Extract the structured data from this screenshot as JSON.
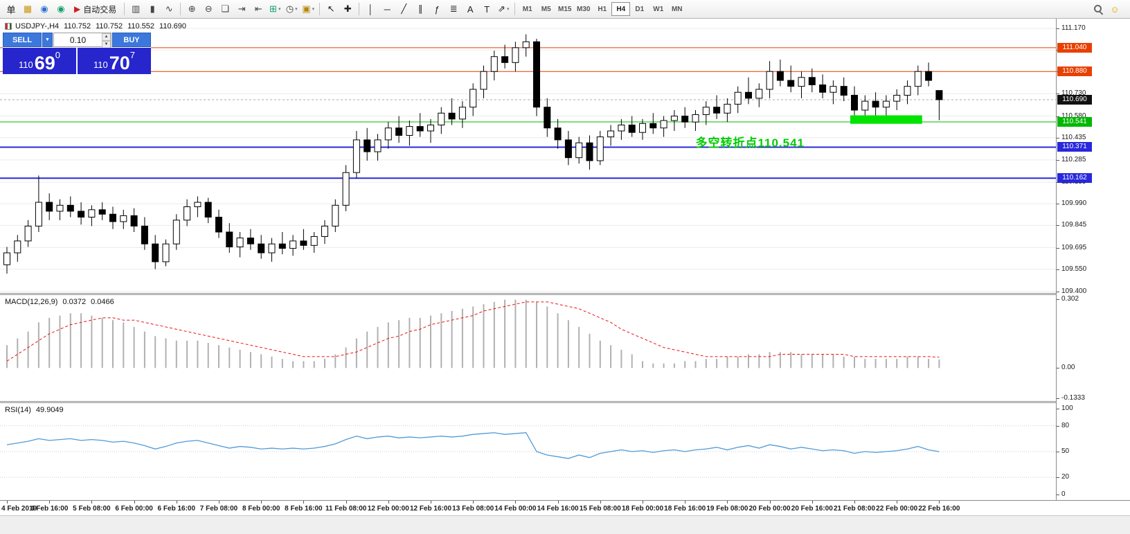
{
  "toolbar": {
    "caret_glyph": "▾",
    "items": [
      {
        "k": "icon",
        "name": "new-order-icon",
        "glyph": "单",
        "color": "#1a1a1a"
      },
      {
        "k": "icon",
        "name": "new-chart-icon",
        "glyph": "▦",
        "color": "#c8960c"
      },
      {
        "k": "icon",
        "name": "accounts-icon",
        "glyph": "◉",
        "color": "#2a6fd4"
      },
      {
        "k": "icon",
        "name": "community-icon",
        "glyph": "◉",
        "color": "#12a06a"
      },
      {
        "k": "btn",
        "name": "auto-trading-button",
        "glyph": "▶",
        "color": "#d02020",
        "label": "自动交易"
      },
      {
        "k": "sep"
      },
      {
        "k": "icon",
        "name": "bar-chart-icon",
        "glyph": "▥",
        "color": "#444444"
      },
      {
        "k": "icon",
        "name": "candlestick-chart-icon",
        "glyph": "▮",
        "color": "#444444"
      },
      {
        "k": "icon",
        "name": "line-chart-icon",
        "glyph": "∿",
        "color": "#444444"
      },
      {
        "k": "sep"
      },
      {
        "k": "icon",
        "name": "zoom-in-icon",
        "glyph": "⊕",
        "color": "#444444"
      },
      {
        "k": "icon",
        "name": "zoom-out-icon",
        "glyph": "⊖",
        "color": "#444444"
      },
      {
        "k": "icon",
        "name": "tile-windows-icon",
        "glyph": "❏",
        "color": "#444444"
      },
      {
        "k": "icon",
        "name": "auto-scroll-icon",
        "glyph": "⇥",
        "color": "#444444"
      },
      {
        "k": "icon",
        "name": "chart-shift-icon",
        "glyph": "⇤",
        "color": "#444444"
      },
      {
        "k": "icondrop",
        "name": "indicators-icon",
        "glyph": "⊞",
        "color": "#12a06a"
      },
      {
        "k": "icondrop",
        "name": "periods-icon",
        "glyph": "◷",
        "color": "#444444"
      },
      {
        "k": "icondrop",
        "name": "templates-icon",
        "glyph": "▣",
        "color": "#b8860b"
      },
      {
        "k": "sep"
      },
      {
        "k": "icon",
        "name": "cursor-icon",
        "glyph": "↖",
        "color": "#222222"
      },
      {
        "k": "icon",
        "name": "crosshair-icon",
        "glyph": "✚",
        "color": "#222222"
      },
      {
        "k": "sep"
      },
      {
        "k": "icon",
        "name": "vertical-line-icon",
        "glyph": "│",
        "color": "#222222"
      },
      {
        "k": "icon",
        "name": "horizontal-line-icon",
        "glyph": "─",
        "color": "#222222"
      },
      {
        "k": "icon",
        "name": "trendline-icon",
        "glyph": "╱",
        "color": "#222222"
      },
      {
        "k": "icon",
        "name": "channel-icon",
        "glyph": "∥",
        "color": "#222222"
      },
      {
        "k": "icon",
        "name": "fibonacci-icon",
        "glyph": "ƒ",
        "color": "#222222"
      },
      {
        "k": "icon",
        "name": "shapes-icon",
        "glyph": "≣",
        "color": "#222222"
      },
      {
        "k": "icon",
        "name": "text-icon",
        "glyph": "A",
        "color": "#222222"
      },
      {
        "k": "icon",
        "name": "text-label-icon",
        "glyph": "T",
        "color": "#222222"
      },
      {
        "k": "icondrop",
        "name": "arrows-icon",
        "glyph": "⇗",
        "color": "#222222"
      },
      {
        "k": "sep"
      }
    ],
    "timeframes": [
      {
        "label": "M1"
      },
      {
        "label": "M5"
      },
      {
        "label": "M15"
      },
      {
        "label": "M30"
      },
      {
        "label": "H1"
      },
      {
        "label": "H4",
        "active": true
      },
      {
        "label": "D1"
      },
      {
        "label": "W1"
      },
      {
        "label": "MN"
      }
    ],
    "right_icons": [
      {
        "name": "search-icon",
        "css": "magnifier"
      },
      {
        "name": "smiley-icon",
        "glyph": "☺",
        "color": "#e0a500"
      }
    ]
  },
  "chart_header": {
    "symbol": "USDJPY-,H4",
    "open": "110.752",
    "high": "110.752",
    "low": "110.552",
    "close": "110.690"
  },
  "one_click": {
    "sell_label": "SELL",
    "buy_label": "BUY",
    "volume": "0.10",
    "dropdown_caret": "▼",
    "spin_up": "▲",
    "spin_down": "▼",
    "sell": {
      "prefix": "110",
      "big": "69",
      "sup": "0"
    },
    "buy": {
      "prefix": "110",
      "big": "70",
      "sup": "7"
    }
  },
  "chart_data": {
    "type": "candlestick",
    "symbol": "USDJPY-",
    "timeframe": "H4",
    "ylim": [
      109.39,
      111.235
    ],
    "bars_per_label": 4,
    "x_labels": [
      "4 Feb 2019",
      "4 Feb 16:00",
      "5 Feb 08:00",
      "6 Feb 00:00",
      "6 Feb 16:00",
      "7 Feb 08:00",
      "8 Feb 00:00",
      "8 Feb 16:00",
      "11 Feb 08:00",
      "12 Feb 00:00",
      "12 Feb 16:00",
      "13 Feb 08:00",
      "14 Feb 00:00",
      "14 Feb 16:00",
      "15 Feb 08:00",
      "18 Feb 00:00",
      "18 Feb 16:00",
      "19 Feb 08:00",
      "20 Feb 00:00",
      "20 Feb 16:00",
      "21 Feb 08:00",
      "22 Feb 00:00",
      "22 Feb 16:00"
    ],
    "price_axis_ticks": [
      "111.170",
      "111.025",
      "110.880",
      "110.730",
      "110.580",
      "110.435",
      "110.285",
      "110.135",
      "109.990",
      "109.845",
      "109.695",
      "109.550",
      "109.400"
    ],
    "ohlc": [
      [
        109.58,
        109.7,
        109.52,
        109.66
      ],
      [
        109.66,
        109.78,
        109.6,
        109.74
      ],
      [
        109.74,
        109.88,
        109.7,
        109.84
      ],
      [
        109.84,
        110.18,
        109.8,
        110.0
      ],
      [
        110.0,
        110.06,
        109.88,
        109.94
      ],
      [
        109.94,
        110.02,
        109.88,
        109.98
      ],
      [
        109.98,
        110.04,
        109.9,
        109.94
      ],
      [
        109.94,
        110.0,
        109.85,
        109.9
      ],
      [
        109.9,
        109.98,
        109.84,
        109.95
      ],
      [
        109.95,
        110.0,
        109.88,
        109.92
      ],
      [
        109.92,
        109.97,
        109.82,
        109.87
      ],
      [
        109.87,
        109.95,
        109.82,
        109.91
      ],
      [
        109.91,
        109.96,
        109.8,
        109.84
      ],
      [
        109.84,
        109.9,
        109.68,
        109.72
      ],
      [
        109.72,
        109.78,
        109.55,
        109.6
      ],
      [
        109.6,
        109.75,
        109.57,
        109.72
      ],
      [
        109.72,
        109.92,
        109.68,
        109.88
      ],
      [
        109.88,
        110.02,
        109.84,
        109.97
      ],
      [
        109.97,
        110.04,
        109.9,
        110.0
      ],
      [
        110.0,
        110.03,
        109.86,
        109.9
      ],
      [
        109.9,
        109.95,
        109.76,
        109.8
      ],
      [
        109.8,
        109.86,
        109.66,
        109.7
      ],
      [
        109.7,
        109.8,
        109.63,
        109.76
      ],
      [
        109.76,
        109.82,
        109.68,
        109.72
      ],
      [
        109.72,
        109.78,
        109.62,
        109.66
      ],
      [
        109.66,
        109.76,
        109.6,
        109.72
      ],
      [
        109.72,
        109.8,
        109.65,
        109.69
      ],
      [
        109.69,
        109.78,
        109.64,
        109.74
      ],
      [
        109.74,
        109.82,
        109.68,
        109.71
      ],
      [
        109.71,
        109.8,
        109.66,
        109.77
      ],
      [
        109.77,
        109.88,
        109.72,
        109.84
      ],
      [
        109.84,
        110.02,
        109.8,
        109.98
      ],
      [
        109.98,
        110.25,
        109.94,
        110.2
      ],
      [
        110.2,
        110.48,
        110.16,
        110.42
      ],
      [
        110.42,
        110.5,
        110.28,
        110.34
      ],
      [
        110.34,
        110.46,
        110.28,
        110.42
      ],
      [
        110.42,
        110.54,
        110.36,
        110.5
      ],
      [
        110.5,
        110.58,
        110.4,
        110.45
      ],
      [
        110.45,
        110.55,
        110.38,
        110.51
      ],
      [
        110.51,
        110.6,
        110.44,
        110.48
      ],
      [
        110.48,
        110.56,
        110.4,
        110.52
      ],
      [
        110.52,
        110.64,
        110.46,
        110.6
      ],
      [
        110.6,
        110.7,
        110.52,
        110.56
      ],
      [
        110.56,
        110.68,
        110.5,
        110.64
      ],
      [
        110.64,
        110.8,
        110.58,
        110.76
      ],
      [
        110.76,
        110.92,
        110.7,
        110.88
      ],
      [
        110.88,
        111.02,
        110.82,
        110.98
      ],
      [
        110.98,
        111.06,
        110.9,
        110.94
      ],
      [
        110.94,
        111.08,
        110.88,
        111.04
      ],
      [
        111.04,
        111.13,
        110.98,
        111.08
      ],
      [
        111.08,
        111.1,
        110.58,
        110.64
      ],
      [
        110.64,
        110.7,
        110.44,
        110.5
      ],
      [
        110.5,
        110.56,
        110.36,
        110.42
      ],
      [
        110.42,
        110.48,
        110.25,
        110.3
      ],
      [
        110.3,
        110.44,
        110.26,
        110.4
      ],
      [
        110.4,
        110.45,
        110.22,
        110.28
      ],
      [
        110.28,
        110.48,
        110.25,
        110.44
      ],
      [
        110.44,
        110.52,
        110.38,
        110.48
      ],
      [
        110.48,
        110.56,
        110.42,
        110.52
      ],
      [
        110.52,
        110.58,
        110.44,
        110.47
      ],
      [
        110.47,
        110.56,
        110.42,
        110.53
      ],
      [
        110.53,
        110.6,
        110.46,
        110.5
      ],
      [
        110.5,
        110.58,
        110.44,
        110.55
      ],
      [
        110.55,
        110.62,
        110.48,
        110.58
      ],
      [
        110.58,
        110.64,
        110.5,
        110.54
      ],
      [
        110.54,
        110.62,
        110.48,
        110.59
      ],
      [
        110.59,
        110.68,
        110.52,
        110.64
      ],
      [
        110.64,
        110.72,
        110.56,
        110.6
      ],
      [
        110.6,
        110.7,
        110.54,
        110.66
      ],
      [
        110.66,
        110.78,
        110.6,
        110.74
      ],
      [
        110.74,
        110.84,
        110.66,
        110.7
      ],
      [
        110.7,
        110.8,
        110.64,
        110.76
      ],
      [
        110.76,
        110.95,
        110.7,
        110.88
      ],
      [
        110.88,
        110.96,
        110.78,
        110.82
      ],
      [
        110.82,
        110.92,
        110.74,
        110.78
      ],
      [
        110.78,
        110.88,
        110.7,
        110.84
      ],
      [
        110.84,
        110.9,
        110.74,
        110.79
      ],
      [
        110.79,
        110.86,
        110.7,
        110.74
      ],
      [
        110.74,
        110.82,
        110.66,
        110.78
      ],
      [
        110.78,
        110.84,
        110.68,
        110.72
      ],
      [
        110.72,
        110.78,
        110.56,
        110.62
      ],
      [
        110.62,
        110.72,
        110.56,
        110.68
      ],
      [
        110.68,
        110.74,
        110.58,
        110.64
      ],
      [
        110.64,
        110.72,
        110.58,
        110.68
      ],
      [
        110.68,
        110.76,
        110.62,
        110.72
      ],
      [
        110.72,
        110.82,
        110.66,
        110.78
      ],
      [
        110.78,
        110.92,
        110.72,
        110.88
      ],
      [
        110.88,
        110.94,
        110.78,
        110.82
      ],
      [
        110.752,
        110.752,
        110.552,
        110.69
      ]
    ],
    "levels": [
      {
        "label": "111.040",
        "value": 111.04,
        "color": "#e84000",
        "width": 1,
        "style": "solid"
      },
      {
        "label": "110.880",
        "value": 110.88,
        "color": "#e84000",
        "width": 1,
        "style": "solid"
      },
      {
        "label": "110.690",
        "value": 110.69,
        "color": "#111111",
        "width": 1,
        "style": "current"
      },
      {
        "label": "110.541",
        "value": 110.541,
        "color": "#00b800",
        "width": 1,
        "style": "solid"
      },
      {
        "label": "110.371",
        "value": 110.371,
        "color": "#2828dc",
        "width": 2,
        "style": "solid"
      },
      {
        "label": "110.162",
        "value": 110.162,
        "color": "#2828dc",
        "width": 2,
        "style": "solid"
      }
    ],
    "highlight": {
      "from_bar": 80,
      "to_bar": 86,
      "price_top": 110.585,
      "price_bottom": 110.528,
      "color": "#00e400"
    },
    "annotation": {
      "text": "多空转折点110.541",
      "color": "#00cc00",
      "bar": 65,
      "price": 110.44
    },
    "indicators": {
      "macd": {
        "label": "MACD(12,26,9)",
        "value_main": "0.0372",
        "value_signal": "0.0466",
        "ylim": [
          -0.145,
          0.32
        ],
        "ticks": [
          {
            "label": "0.302",
            "value": 0.302
          },
          {
            "label": "0.00",
            "value": 0.0
          },
          {
            "label": "-0.1333",
            "value": -0.1333
          }
        ],
        "histogram_color": "#b0b0b0",
        "signal_color": "#ee1111",
        "histogram": [
          0.1,
          0.13,
          0.16,
          0.2,
          0.22,
          0.23,
          0.24,
          0.24,
          0.23,
          0.22,
          0.21,
          0.2,
          0.18,
          0.16,
          0.14,
          0.13,
          0.12,
          0.12,
          0.12,
          0.11,
          0.1,
          0.09,
          0.08,
          0.07,
          0.06,
          0.05,
          0.04,
          0.03,
          0.03,
          0.03,
          0.04,
          0.06,
          0.09,
          0.13,
          0.16,
          0.18,
          0.2,
          0.21,
          0.22,
          0.22,
          0.23,
          0.24,
          0.25,
          0.26,
          0.27,
          0.28,
          0.29,
          0.3,
          0.3,
          0.3,
          0.29,
          0.27,
          0.24,
          0.21,
          0.18,
          0.15,
          0.12,
          0.1,
          0.08,
          0.06,
          0.03,
          0.02,
          0.02,
          0.02,
          0.03,
          0.03,
          0.04,
          0.04,
          0.05,
          0.05,
          0.06,
          0.06,
          0.07,
          0.07,
          0.07,
          0.06,
          0.06,
          0.06,
          0.06,
          0.05,
          0.05,
          0.04,
          0.04,
          0.04,
          0.04,
          0.05,
          0.05,
          0.04,
          0.037
        ],
        "signal": [
          0.03,
          0.06,
          0.09,
          0.12,
          0.15,
          0.17,
          0.19,
          0.2,
          0.21,
          0.22,
          0.22,
          0.21,
          0.21,
          0.2,
          0.19,
          0.18,
          0.17,
          0.16,
          0.15,
          0.14,
          0.13,
          0.12,
          0.11,
          0.1,
          0.09,
          0.08,
          0.07,
          0.06,
          0.05,
          0.05,
          0.05,
          0.05,
          0.06,
          0.07,
          0.09,
          0.11,
          0.13,
          0.14,
          0.16,
          0.17,
          0.19,
          0.2,
          0.21,
          0.22,
          0.23,
          0.25,
          0.26,
          0.27,
          0.28,
          0.29,
          0.29,
          0.29,
          0.28,
          0.27,
          0.26,
          0.24,
          0.22,
          0.2,
          0.17,
          0.15,
          0.13,
          0.11,
          0.09,
          0.08,
          0.07,
          0.06,
          0.05,
          0.05,
          0.05,
          0.05,
          0.05,
          0.05,
          0.05,
          0.06,
          0.06,
          0.06,
          0.06,
          0.06,
          0.06,
          0.06,
          0.05,
          0.05,
          0.05,
          0.05,
          0.05,
          0.05,
          0.05,
          0.05,
          0.047
        ]
      },
      "rsi": {
        "label": "RSI(14)",
        "value": "49.9049",
        "ylim": [
          0,
          100
        ],
        "levels": [
          80,
          50,
          20
        ],
        "ticks": [
          {
            "label": "100",
            "value": 100
          },
          {
            "label": "80",
            "value": 80
          },
          {
            "label": "50",
            "value": 50
          },
          {
            "label": "20",
            "value": 20
          },
          {
            "label": "0",
            "value": 0
          }
        ],
        "line_color": "#4f9bd8",
        "values": [
          58,
          60,
          62,
          65,
          63,
          64,
          65,
          63,
          64,
          63,
          61,
          62,
          60,
          57,
          53,
          56,
          60,
          62,
          63,
          60,
          57,
          54,
          56,
          55,
          53,
          54,
          53,
          54,
          53,
          54,
          56,
          59,
          64,
          68,
          65,
          67,
          68,
          66,
          67,
          66,
          67,
          68,
          67,
          68,
          70,
          71,
          72,
          70,
          71,
          72,
          50,
          46,
          44,
          42,
          46,
          43,
          48,
          50,
          52,
          50,
          51,
          49,
          51,
          52,
          50,
          52,
          53,
          55,
          52,
          55,
          57,
          54,
          58,
          56,
          53,
          55,
          53,
          51,
          52,
          51,
          48,
          50,
          49,
          50,
          51,
          53,
          56,
          52,
          49.9
        ]
      }
    }
  }
}
